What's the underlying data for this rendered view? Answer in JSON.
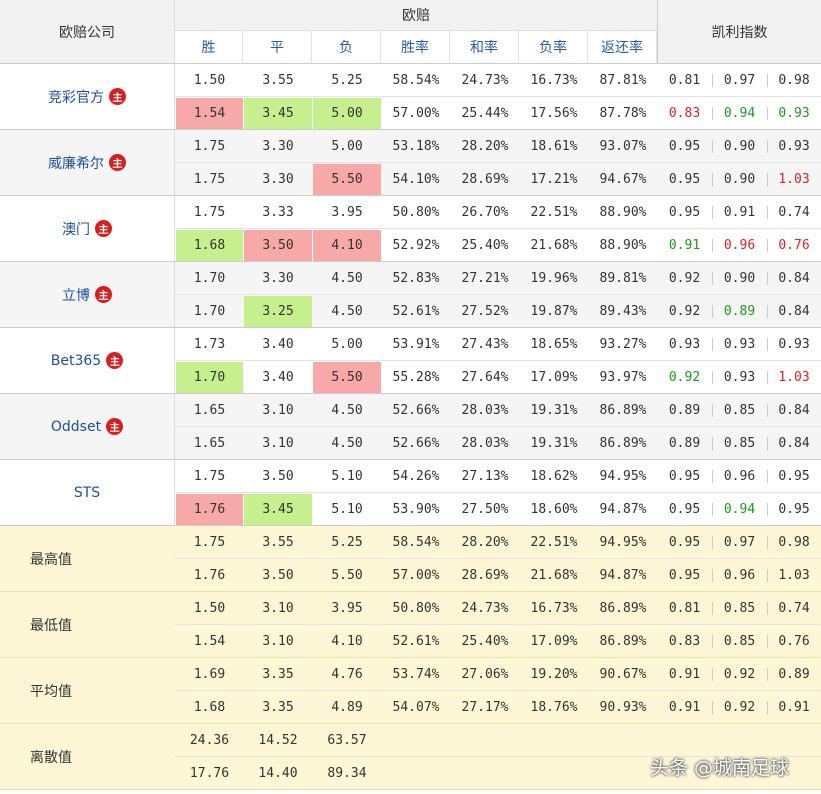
{
  "header": {
    "company": "欧赔公司",
    "european": "欧赔",
    "kelly": "凯利指数",
    "columns": [
      "胜",
      "平",
      "负",
      "胜率",
      "和率",
      "负率",
      "返还率"
    ]
  },
  "companies": [
    {
      "name": "竞彩官方",
      "badge": "主",
      "rows": [
        {
          "cells": [
            "1.50",
            "3.55",
            "5.25",
            "58.54%",
            "24.73%",
            "16.73%",
            "87.81%"
          ],
          "kelly": [
            "0.81",
            "0.97",
            "0.98"
          ]
        },
        {
          "cells": [
            "1.54",
            "3.45",
            "5.00",
            "57.00%",
            "25.44%",
            "17.56%",
            "87.78%"
          ],
          "kelly": [
            "0.83",
            "0.94",
            "0.93"
          ],
          "cell_bg": {
            "0": "#f7a9a8",
            "1": "#c6ef8e",
            "2": "#c6ef8e"
          },
          "kelly_color": {
            "0": "#e02020",
            "1": "#1a9a1a",
            "2": "#1a9a1a"
          }
        }
      ]
    },
    {
      "name": "威廉希尔",
      "badge": "主",
      "rows": [
        {
          "cells": [
            "1.75",
            "3.30",
            "5.00",
            "53.18%",
            "28.20%",
            "18.61%",
            "93.07%"
          ],
          "kelly": [
            "0.95",
            "0.90",
            "0.93"
          ]
        },
        {
          "cells": [
            "1.75",
            "3.30",
            "5.50",
            "54.10%",
            "28.69%",
            "17.21%",
            "94.67%"
          ],
          "kelly": [
            "0.95",
            "0.90",
            "1.03"
          ],
          "cell_bg": {
            "2": "#f7a9a8"
          },
          "kelly_color": {
            "2": "#e02020"
          }
        }
      ]
    },
    {
      "name": "澳门",
      "badge": "主",
      "rows": [
        {
          "cells": [
            "1.75",
            "3.33",
            "3.95",
            "50.80%",
            "26.70%",
            "22.51%",
            "88.90%"
          ],
          "kelly": [
            "0.95",
            "0.91",
            "0.74"
          ]
        },
        {
          "cells": [
            "1.68",
            "3.50",
            "4.10",
            "52.92%",
            "25.40%",
            "21.68%",
            "88.90%"
          ],
          "kelly": [
            "0.91",
            "0.96",
            "0.76"
          ],
          "cell_bg": {
            "0": "#c6ef8e",
            "1": "#f7a9a8",
            "2": "#f7a9a8"
          },
          "kelly_color": {
            "0": "#1a9a1a",
            "1": "#e02020",
            "2": "#e02020"
          }
        }
      ]
    },
    {
      "name": "立博",
      "badge": "主",
      "rows": [
        {
          "cells": [
            "1.70",
            "3.30",
            "4.50",
            "52.83%",
            "27.21%",
            "19.96%",
            "89.81%"
          ],
          "kelly": [
            "0.92",
            "0.90",
            "0.84"
          ]
        },
        {
          "cells": [
            "1.70",
            "3.25",
            "4.50",
            "52.61%",
            "27.52%",
            "19.87%",
            "89.43%"
          ],
          "kelly": [
            "0.92",
            "0.89",
            "0.84"
          ],
          "cell_bg": {
            "1": "#c6ef8e"
          },
          "kelly_color": {
            "1": "#1a9a1a"
          }
        }
      ]
    },
    {
      "name": "Bet365",
      "badge": "主",
      "rows": [
        {
          "cells": [
            "1.73",
            "3.40",
            "5.00",
            "53.91%",
            "27.43%",
            "18.65%",
            "93.27%"
          ],
          "kelly": [
            "0.93",
            "0.93",
            "0.93"
          ]
        },
        {
          "cells": [
            "1.70",
            "3.40",
            "5.50",
            "55.28%",
            "27.64%",
            "17.09%",
            "93.97%"
          ],
          "kelly": [
            "0.92",
            "0.93",
            "1.03"
          ],
          "cell_bg": {
            "0": "#c6ef8e",
            "2": "#f7a9a8"
          },
          "kelly_color": {
            "0": "#1a9a1a",
            "2": "#e02020"
          }
        }
      ]
    },
    {
      "name": "Oddset",
      "badge": "主",
      "rows": [
        {
          "cells": [
            "1.65",
            "3.10",
            "4.50",
            "52.66%",
            "28.03%",
            "19.31%",
            "86.89%"
          ],
          "kelly": [
            "0.89",
            "0.85",
            "0.84"
          ]
        },
        {
          "cells": [
            "1.65",
            "3.10",
            "4.50",
            "52.66%",
            "28.03%",
            "19.31%",
            "86.89%"
          ],
          "kelly": [
            "0.89",
            "0.85",
            "0.84"
          ]
        }
      ]
    },
    {
      "name": "STS",
      "rows": [
        {
          "cells": [
            "1.75",
            "3.50",
            "5.10",
            "54.26%",
            "27.13%",
            "18.62%",
            "94.95%"
          ],
          "kelly": [
            "0.95",
            "0.96",
            "0.95"
          ]
        },
        {
          "cells": [
            "1.76",
            "3.45",
            "5.10",
            "53.90%",
            "27.50%",
            "18.60%",
            "94.87%"
          ],
          "kelly": [
            "0.95",
            "0.94",
            "0.95"
          ],
          "cell_bg": {
            "0": "#f7a9a8",
            "1": "#c6ef8e"
          },
          "kelly_color": {
            "1": "#1a9a1a"
          }
        }
      ]
    }
  ],
  "stats": [
    {
      "name": "最高值",
      "rows": [
        {
          "cells": [
            "1.75",
            "3.55",
            "5.25",
            "58.54%",
            "28.20%",
            "22.51%",
            "94.95%"
          ],
          "kelly": [
            "0.95",
            "0.97",
            "0.98"
          ]
        },
        {
          "cells": [
            "1.76",
            "3.50",
            "5.50",
            "57.00%",
            "28.69%",
            "21.68%",
            "94.87%"
          ],
          "kelly": [
            "0.95",
            "0.96",
            "1.03"
          ]
        }
      ]
    },
    {
      "name": "最低值",
      "rows": [
        {
          "cells": [
            "1.50",
            "3.10",
            "3.95",
            "50.80%",
            "24.73%",
            "16.73%",
            "86.89%"
          ],
          "kelly": [
            "0.81",
            "0.85",
            "0.74"
          ]
        },
        {
          "cells": [
            "1.54",
            "3.10",
            "4.10",
            "52.61%",
            "25.40%",
            "17.09%",
            "86.89%"
          ],
          "kelly": [
            "0.83",
            "0.85",
            "0.76"
          ]
        }
      ]
    },
    {
      "name": "平均值",
      "rows": [
        {
          "cells": [
            "1.69",
            "3.35",
            "4.76",
            "53.74%",
            "27.06%",
            "19.20%",
            "90.67%"
          ],
          "kelly": [
            "0.91",
            "0.92",
            "0.89"
          ]
        },
        {
          "cells": [
            "1.68",
            "3.35",
            "4.89",
            "54.07%",
            "27.17%",
            "18.76%",
            "90.93%"
          ],
          "kelly": [
            "0.91",
            "0.92",
            "0.91"
          ]
        }
      ]
    },
    {
      "name": "离散值",
      "rows": [
        {
          "cells": [
            "24.36",
            "14.52",
            "63.57"
          ]
        },
        {
          "cells": [
            "17.76",
            "14.40",
            "89.34"
          ]
        }
      ]
    }
  ],
  "watermark": "头条 @城南足球"
}
